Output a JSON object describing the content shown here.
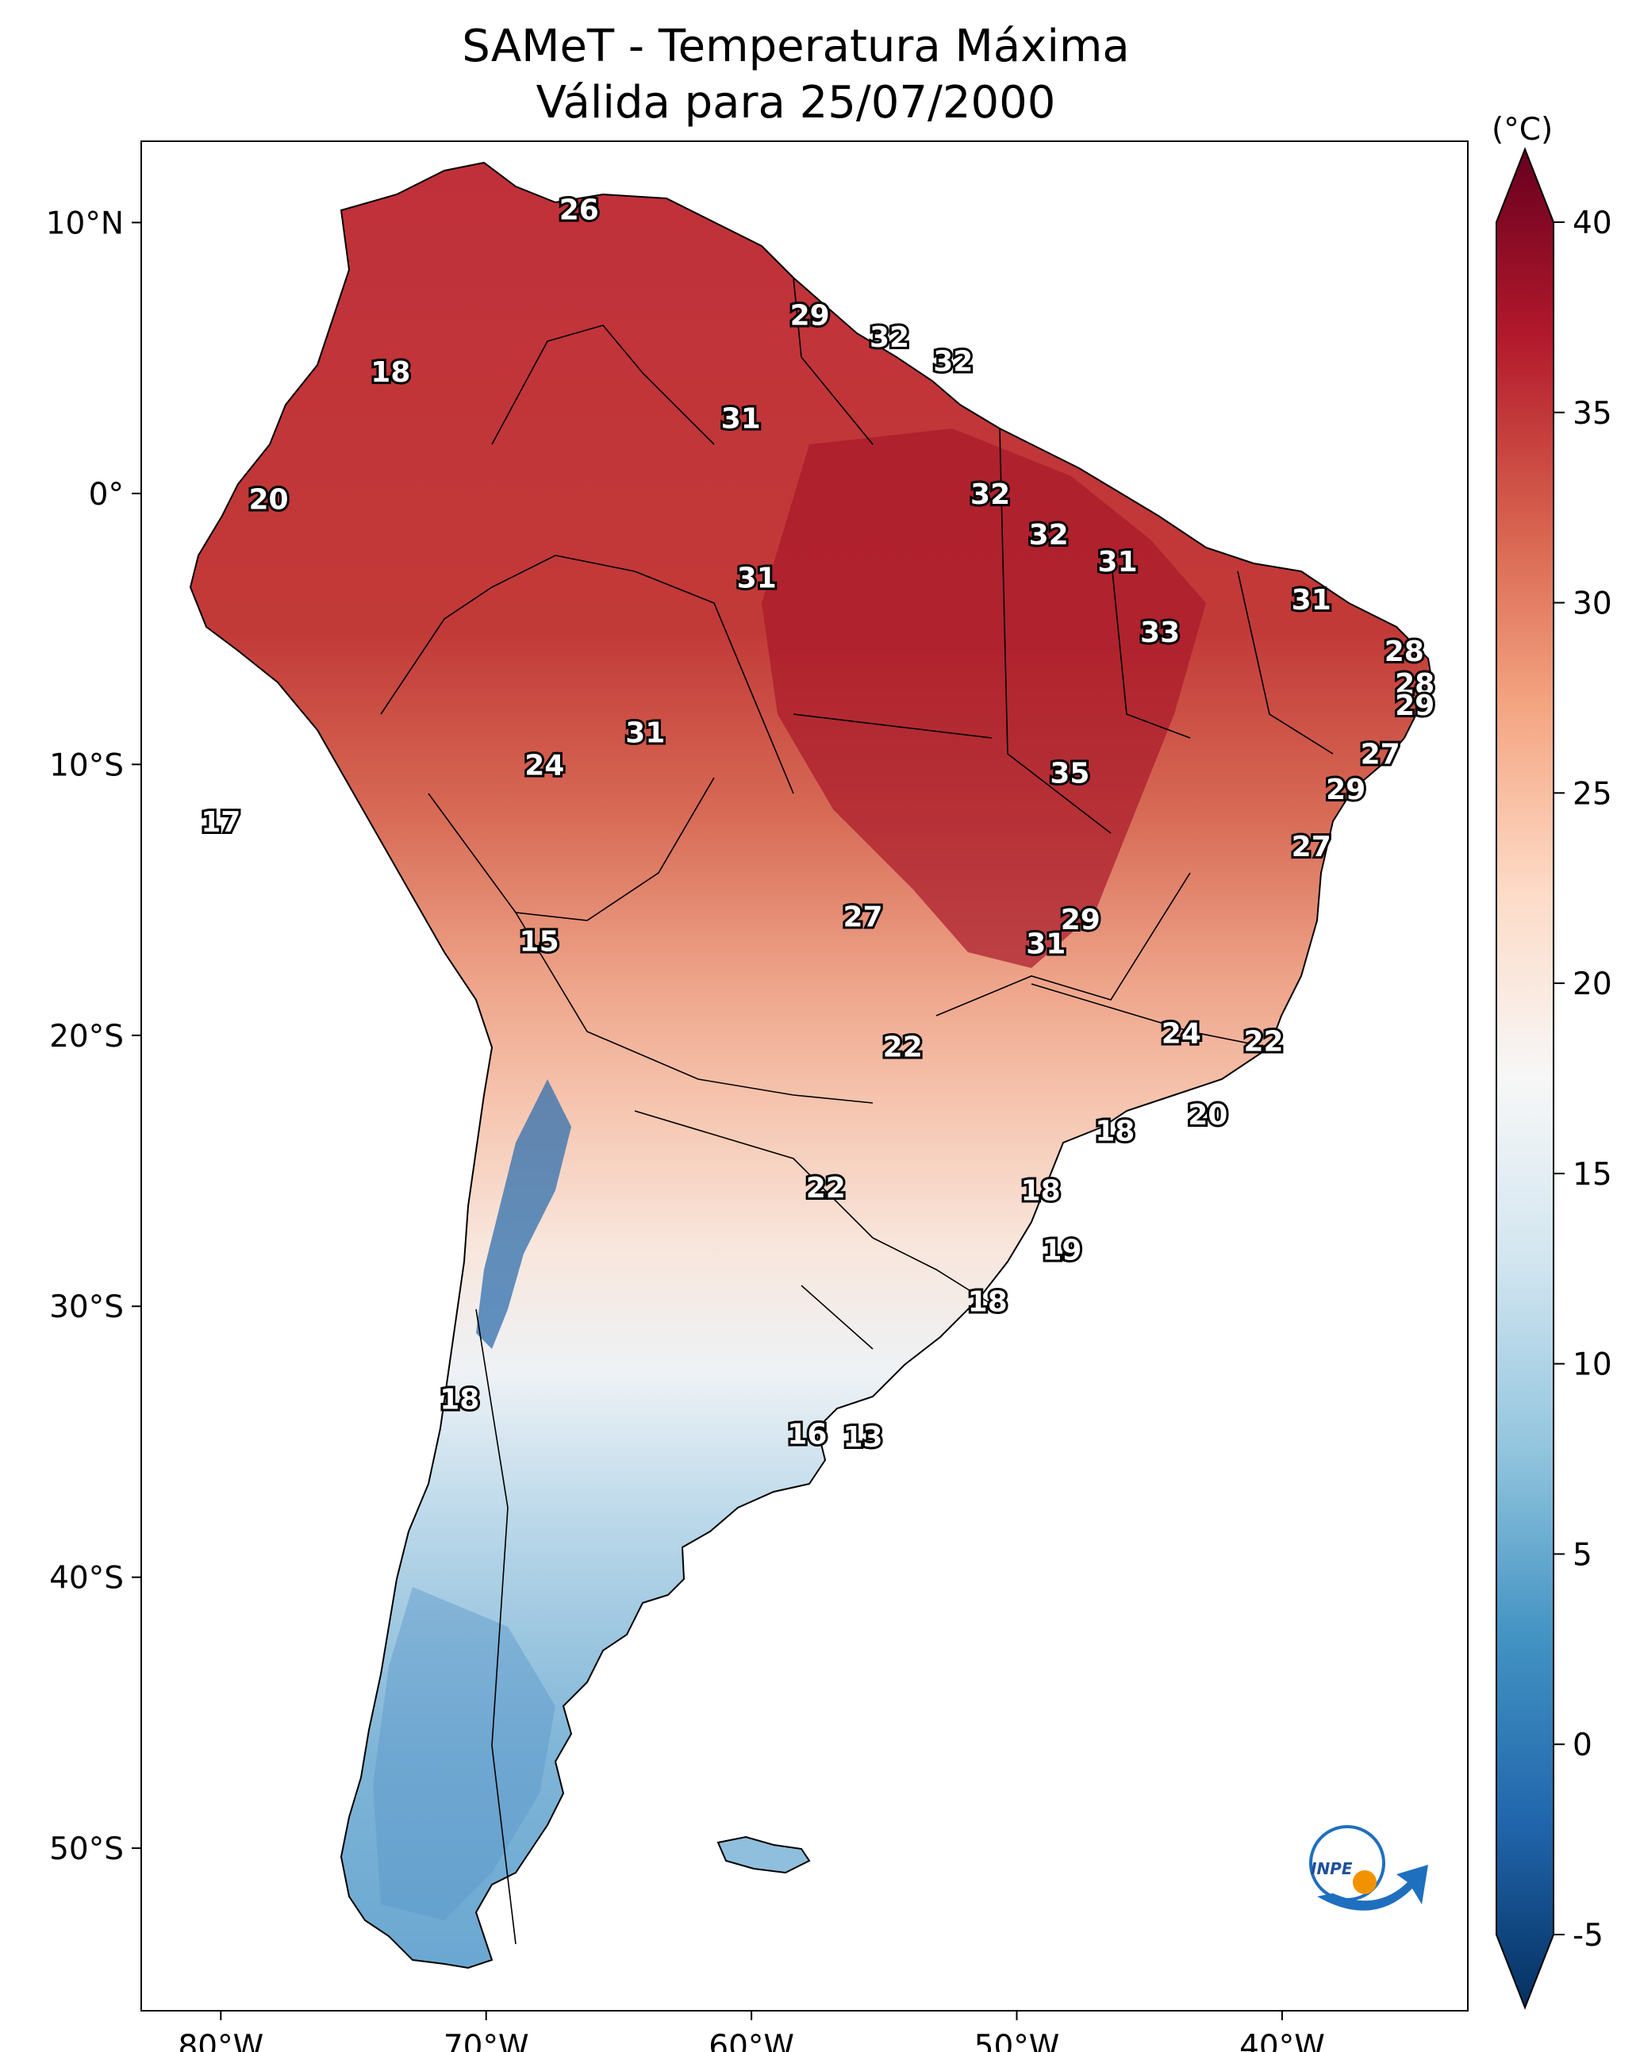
{
  "title": {
    "line1": "SAMeT - Temperatura Máxima",
    "line2": "Válida para 25/07/2000"
  },
  "map": {
    "lon_range": [
      -83,
      -33
    ],
    "lat_range": [
      -56,
      13
    ],
    "x_ticks": [
      {
        "value": -80,
        "label": "80°W"
      },
      {
        "value": -70,
        "label": "70°W"
      },
      {
        "value": -60,
        "label": "60°W"
      },
      {
        "value": -50,
        "label": "50°W"
      },
      {
        "value": -40,
        "label": "40°W"
      }
    ],
    "y_ticks": [
      {
        "value": 10,
        "label": "10°N"
      },
      {
        "value": 0,
        "label": "0°"
      },
      {
        "value": -10,
        "label": "10°S"
      },
      {
        "value": -20,
        "label": "20°S"
      },
      {
        "value": -30,
        "label": "30°S"
      },
      {
        "value": -40,
        "label": "40°S"
      },
      {
        "value": -50,
        "label": "50°S"
      }
    ],
    "labels": [
      {
        "lon": -66.5,
        "lat": 10.5,
        "text": "26"
      },
      {
        "lon": -57.8,
        "lat": 6.6,
        "text": "29"
      },
      {
        "lon": -54.8,
        "lat": 5.8,
        "text": "32"
      },
      {
        "lon": -52.4,
        "lat": 4.9,
        "text": "32"
      },
      {
        "lon": -73.6,
        "lat": 4.5,
        "text": "18"
      },
      {
        "lon": -60.4,
        "lat": 2.8,
        "text": "31"
      },
      {
        "lon": -51.0,
        "lat": 0.0,
        "text": "32"
      },
      {
        "lon": -78.2,
        "lat": -0.2,
        "text": "20"
      },
      {
        "lon": -48.8,
        "lat": -1.5,
        "text": "32"
      },
      {
        "lon": -59.8,
        "lat": -3.1,
        "text": "31"
      },
      {
        "lon": -46.2,
        "lat": -2.5,
        "text": "31"
      },
      {
        "lon": -38.9,
        "lat": -3.9,
        "text": "31"
      },
      {
        "lon": -44.6,
        "lat": -5.1,
        "text": "33"
      },
      {
        "lon": -35.4,
        "lat": -5.8,
        "text": "28"
      },
      {
        "lon": -35.0,
        "lat": -7.0,
        "text": "28"
      },
      {
        "lon": -35.0,
        "lat": -7.8,
        "text": "29"
      },
      {
        "lon": -64.0,
        "lat": -8.8,
        "text": "31"
      },
      {
        "lon": -36.3,
        "lat": -9.6,
        "text": "27"
      },
      {
        "lon": -67.8,
        "lat": -10.0,
        "text": "24"
      },
      {
        "lon": -48.0,
        "lat": -10.3,
        "text": "35"
      },
      {
        "lon": -37.6,
        "lat": -10.9,
        "text": "29"
      },
      {
        "lon": -80.0,
        "lat": -12.1,
        "text": "17"
      },
      {
        "lon": -38.9,
        "lat": -13.0,
        "text": "27"
      },
      {
        "lon": -55.8,
        "lat": -15.6,
        "text": "27"
      },
      {
        "lon": -47.6,
        "lat": -15.7,
        "text": "29"
      },
      {
        "lon": -48.9,
        "lat": -16.6,
        "text": "31"
      },
      {
        "lon": -68.0,
        "lat": -16.5,
        "text": "15"
      },
      {
        "lon": -43.8,
        "lat": -19.9,
        "text": "24"
      },
      {
        "lon": -54.3,
        "lat": -20.4,
        "text": "22"
      },
      {
        "lon": -40.7,
        "lat": -20.2,
        "text": "22"
      },
      {
        "lon": -42.8,
        "lat": -22.9,
        "text": "20"
      },
      {
        "lon": -46.3,
        "lat": -23.5,
        "text": "18"
      },
      {
        "lon": -57.2,
        "lat": -25.6,
        "text": "22"
      },
      {
        "lon": -49.1,
        "lat": -25.7,
        "text": "18"
      },
      {
        "lon": -48.3,
        "lat": -27.9,
        "text": "19"
      },
      {
        "lon": -51.1,
        "lat": -29.8,
        "text": "18"
      },
      {
        "lon": -71.0,
        "lat": -33.4,
        "text": "18"
      },
      {
        "lon": -57.9,
        "lat": -34.7,
        "text": "16"
      },
      {
        "lon": -55.8,
        "lat": -34.8,
        "text": "13"
      }
    ]
  },
  "colorbar": {
    "unit": "(°C)",
    "min": -5,
    "max": 40,
    "ticks": [
      {
        "value": 40,
        "label": "40"
      },
      {
        "value": 35,
        "label": "35"
      },
      {
        "value": 30,
        "label": "30"
      },
      {
        "value": 25,
        "label": "25"
      },
      {
        "value": 20,
        "label": "20"
      },
      {
        "value": 15,
        "label": "15"
      },
      {
        "value": 10,
        "label": "10"
      },
      {
        "value": 5,
        "label": "5"
      },
      {
        "value": 0,
        "label": "0"
      },
      {
        "value": -5,
        "label": "-5"
      }
    ],
    "colors": [
      "#053061",
      "#2166ac",
      "#4393c3",
      "#92c5de",
      "#d1e5f0",
      "#f7f7f7",
      "#fddbc7",
      "#f4a582",
      "#d6604d",
      "#b2182b",
      "#67001f"
    ]
  },
  "logo": {
    "text": "INPE",
    "primary_color": "#1f6fbf",
    "accent_color": "#f39200"
  }
}
